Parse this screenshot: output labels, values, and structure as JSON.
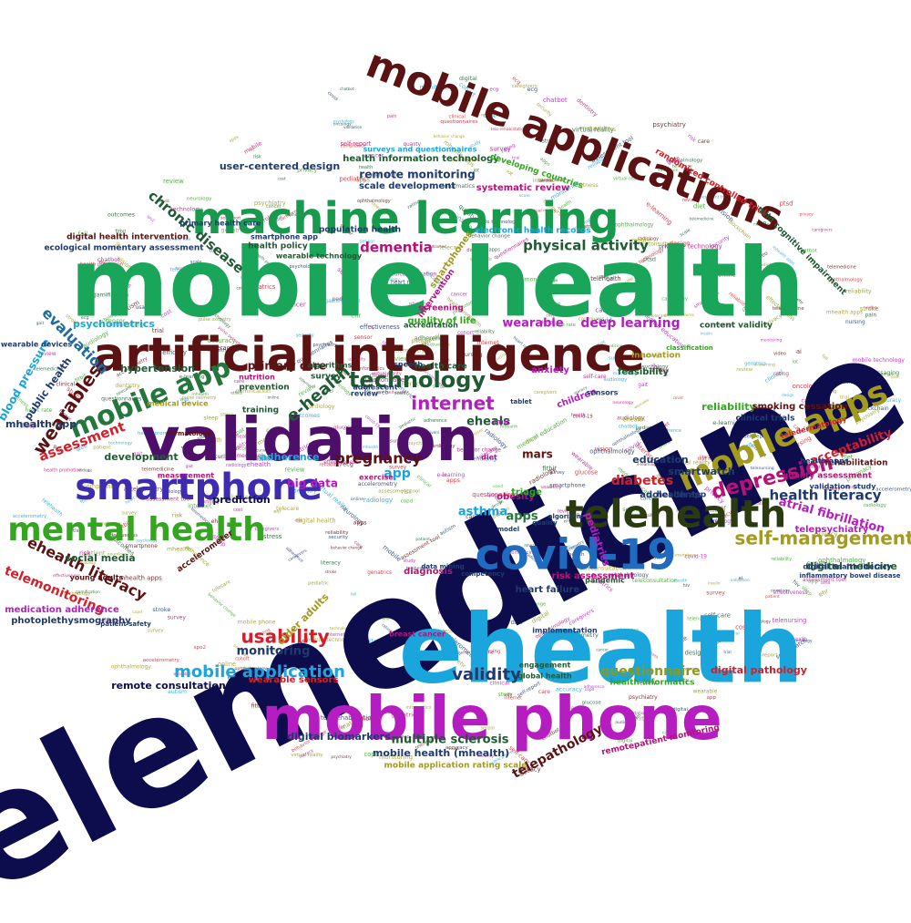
{
  "title": "Word cloud of keywords",
  "words": [
    {
      "text": "telemedicine",
      "color": "#0d0d4d"
    },
    {
      "text": "mobile health",
      "color": "#19a55a"
    },
    {
      "text": "ehealth",
      "color": "#1aa5dc"
    },
    {
      "text": "mobile phone",
      "color": "#b51dc0"
    },
    {
      "text": "validation",
      "color": "#4d0f6a"
    },
    {
      "text": "artificial intelligence",
      "color": "#5b1212"
    },
    {
      "text": "machine learning",
      "color": "#179a4c"
    },
    {
      "text": "mobile applications",
      "color": "#5b1212"
    },
    {
      "text": "smartphone",
      "color": "#3d2bb0"
    },
    {
      "text": "covid-19",
      "color": "#1e6bbf"
    },
    {
      "text": "telehealth",
      "color": "#2b3b10"
    },
    {
      "text": "mobile apps",
      "color": "#a39b1d"
    },
    {
      "text": "mental health",
      "color": "#33a51f"
    },
    {
      "text": "mobile app",
      "color": "#25763c"
    },
    {
      "text": "technology",
      "color": "#1f5a34"
    },
    {
      "text": "internet",
      "color": "#b51dc0"
    },
    {
      "text": "depression",
      "color": "#b8127a"
    },
    {
      "text": "self-management",
      "color": "#a39b1d"
    },
    {
      "text": "usability",
      "color": "#d41e2a"
    },
    {
      "text": "mobile application",
      "color": "#1aa5dc"
    },
    {
      "text": "validity",
      "color": "#1f3a6e"
    },
    {
      "text": "questionnaire",
      "color": "#8a9a1b"
    },
    {
      "text": "physical activity",
      "color": "#1f5a34"
    },
    {
      "text": "wearables",
      "color": "#5b1212"
    },
    {
      "text": "pregnancy",
      "color": "#5b1212"
    },
    {
      "text": "e-health",
      "color": "#1f5a34"
    },
    {
      "text": "ehealth literacy",
      "color": "#5b1212"
    },
    {
      "text": "telemonitoring",
      "color": "#d41e2a"
    },
    {
      "text": "health literacy",
      "color": "#1f3a6e"
    },
    {
      "text": "chronic disease",
      "color": "#1f5a34"
    },
    {
      "text": "dementia",
      "color": "#b8127a"
    },
    {
      "text": "deep learning",
      "color": "#b51dc0"
    },
    {
      "text": "wearable",
      "color": "#b51dc0"
    },
    {
      "text": "assessment",
      "color": "#d41e2a"
    },
    {
      "text": "evaluation",
      "color": "#1f6a9e"
    },
    {
      "text": "diabetes",
      "color": "#d41e2a"
    },
    {
      "text": "asthma",
      "color": "#1aa5dc"
    },
    {
      "text": "apps",
      "color": "#25763c"
    },
    {
      "text": "app",
      "color": "#1aa5dc"
    },
    {
      "text": "eheals",
      "color": "#1f5a34"
    },
    {
      "text": "mars",
      "color": "#5b1212"
    },
    {
      "text": "acceptability",
      "color": "#d41e2a"
    },
    {
      "text": "atrial fibrillation",
      "color": "#b51dc0"
    },
    {
      "text": "telepathology",
      "color": "#5b1212"
    },
    {
      "text": "multiple sclerosis",
      "color": "#1f5a34"
    },
    {
      "text": "digital biomarkers",
      "color": "#1f3a6e"
    },
    {
      "text": "mobile health (mhealth)",
      "color": "#1f3a6e"
    },
    {
      "text": "remote monitoring",
      "color": "#1f3a6e"
    },
    {
      "text": "health information technology",
      "color": "#1f5a34"
    },
    {
      "text": "user-centered design",
      "color": "#1f3a6e"
    },
    {
      "text": "monitoring",
      "color": "#1f3a6e"
    },
    {
      "text": "psychometrics",
      "color": "#1aa5dc"
    },
    {
      "text": "hypertension",
      "color": "#1f5a34"
    },
    {
      "text": "primary care",
      "color": "#5b1212"
    },
    {
      "text": "big data",
      "color": "#b51dc0"
    },
    {
      "text": "adherence",
      "color": "#1aa5dc"
    },
    {
      "text": "prediction",
      "color": "#0d0d4d"
    },
    {
      "text": "development",
      "color": "#1f5a34"
    },
    {
      "text": "social media",
      "color": "#1f5a34"
    },
    {
      "text": "blood pressure",
      "color": "#1aa5dc"
    },
    {
      "text": "public health",
      "color": "#1f3a6e"
    },
    {
      "text": "mhealth app",
      "color": "#1f3a6e"
    },
    {
      "text": "smartwatch",
      "color": "#1f3a6e"
    },
    {
      "text": "education",
      "color": "#1f3a6e"
    },
    {
      "text": "reliability",
      "color": "#33a51f"
    },
    {
      "text": "digital medicine",
      "color": "#1f5a34"
    },
    {
      "text": "digital pathology",
      "color": "#d41e2a"
    },
    {
      "text": "telepsychiatry",
      "color": "#b51dc0"
    },
    {
      "text": "heart failure",
      "color": "#1f3a6e"
    },
    {
      "text": "risk assessment",
      "color": "#b8127a"
    },
    {
      "text": "diagnosis",
      "color": "#b8127a"
    },
    {
      "text": "remote consultation",
      "color": "#0d0d4d"
    },
    {
      "text": "wearable sensors",
      "color": "#d41e2a"
    },
    {
      "text": "health informatics",
      "color": "#33a51f"
    },
    {
      "text": "mobile application rating scale",
      "color": "#a39b1d"
    },
    {
      "text": "photoplethysmography",
      "color": "#1f3a6e"
    },
    {
      "text": "medication adherence",
      "color": "#b51dc0"
    },
    {
      "text": "ecological momentary assessment",
      "color": "#1f3a6e"
    },
    {
      "text": "scale development",
      "color": "#1f3a6e"
    },
    {
      "text": "systematic review",
      "color": "#b8127a"
    },
    {
      "text": "feasibility",
      "color": "#1f5a34"
    },
    {
      "text": "obesity",
      "color": "#b8127a"
    },
    {
      "text": "quality of life",
      "color": "#33a51f"
    },
    {
      "text": "smoking cessation",
      "color": "#5b1212"
    },
    {
      "text": "rehabilitation",
      "color": "#5b1212"
    },
    {
      "text": "quality assessment",
      "color": "#b8127a"
    },
    {
      "text": "content validity",
      "color": "#1f5a34"
    },
    {
      "text": "adolescents",
      "color": "#1f3a6e"
    },
    {
      "text": "innovation",
      "color": "#a39b1d"
    },
    {
      "text": "pediatrics",
      "color": "#b51dc0"
    },
    {
      "text": "anxiety",
      "color": "#b51dc0"
    },
    {
      "text": "children",
      "color": "#b51dc0"
    },
    {
      "text": "triage",
      "color": "#33a51f"
    },
    {
      "text": "smartphones",
      "color": "#a39b1d"
    },
    {
      "text": "intervention",
      "color": "#b8127a"
    },
    {
      "text": "population health",
      "color": "#1f3a6e"
    },
    {
      "text": "electronic health records",
      "color": "#1aa5dc"
    },
    {
      "text": "surveys and questionnaires",
      "color": "#1aa5dc"
    },
    {
      "text": "developing countries",
      "color": "#33a51f"
    },
    {
      "text": "randomized controlled trial",
      "color": "#d41e2a"
    },
    {
      "text": "mild cognitive impairment",
      "color": "#1f5a34"
    },
    {
      "text": "digital health intervention",
      "color": "#5b1212"
    },
    {
      "text": "health policy",
      "color": "#1f5a34"
    },
    {
      "text": "primary health care",
      "color": "#1f3a6e"
    },
    {
      "text": "smartphone app",
      "color": "#1f3a6e"
    },
    {
      "text": "wearable technology",
      "color": "#1f5a34"
    },
    {
      "text": "older adults",
      "color": "#a39b1d"
    },
    {
      "text": "survey",
      "color": "#1f5a34"
    },
    {
      "text": "prevention",
      "color": "#1f5a34"
    },
    {
      "text": "training",
      "color": "#1f5a34"
    },
    {
      "text": "nutrition",
      "color": "#b8127a"
    },
    {
      "text": "medical device",
      "color": "#a39b1d"
    },
    {
      "text": "health care",
      "color": "#1f5a34"
    },
    {
      "text": "speech",
      "color": "#1f3a6e"
    },
    {
      "text": "adolescent",
      "color": "#1f3a6e"
    },
    {
      "text": "review",
      "color": "#1f3a6e"
    },
    {
      "text": "screening",
      "color": "#b8127a"
    },
    {
      "text": "accreditation",
      "color": "#1f5a34"
    },
    {
      "text": "algorithms",
      "color": "#1f5a34"
    },
    {
      "text": "lmic",
      "color": "#b51dc0"
    },
    {
      "text": "exercise",
      "color": "#b8127a"
    },
    {
      "text": "clinical trials",
      "color": "#1f3a6e"
    },
    {
      "text": "telemedicine",
      "color": "#b8127a"
    },
    {
      "text": "telemedicine",
      "color": "#b8127a"
    },
    {
      "text": "health apps",
      "color": "#1f3a6e"
    },
    {
      "text": "health app",
      "color": "#1f3a6e"
    },
    {
      "text": "digital health literacy",
      "color": "#1f3a6e"
    },
    {
      "text": "young adults",
      "color": "#5b1212"
    },
    {
      "text": "accelerometer",
      "color": "#5b1212"
    },
    {
      "text": "pandemic",
      "color": "#1f5a34"
    },
    {
      "text": "global health",
      "color": "#1f5a34"
    },
    {
      "text": "engagement",
      "color": "#1f5a34"
    },
    {
      "text": "breast cancer",
      "color": "#b8127a"
    },
    {
      "text": "implementation",
      "color": "#1f3a6e"
    },
    {
      "text": "remotepatient monitoring",
      "color": "#b8127a"
    },
    {
      "text": "wearable devices",
      "color": "#1f3a6e"
    },
    {
      "text": "competency",
      "color": "#1f3a6e"
    },
    {
      "text": "classification",
      "color": "#33a51f"
    },
    {
      "text": "data mining",
      "color": "#1f3a6e"
    },
    {
      "text": "quality",
      "color": "#1f3a6e"
    },
    {
      "text": "model",
      "color": "#1f3a6e"
    },
    {
      "text": "algorithm",
      "color": "#1f3a6e"
    },
    {
      "text": "dermatology",
      "color": "#5b1212"
    },
    {
      "text": "diet",
      "color": "#b8127a"
    },
    {
      "text": "tablet",
      "color": "#1f3a6e"
    },
    {
      "text": "sensors",
      "color": "#1f3a6e"
    },
    {
      "text": "validation study",
      "color": "#1f3a6e"
    },
    {
      "text": "teledermatology",
      "color": "#d41e2a"
    },
    {
      "text": "inflammatory bowel disease",
      "color": "#1f3a6e"
    },
    {
      "text": "patient safety",
      "color": "#1f3a6e"
    },
    {
      "text": "measurement",
      "color": "#b8127a"
    }
  ],
  "small_words": [
    "telemedicine",
    "ehealth",
    "mhealth",
    "digital health",
    "validation",
    "mobile",
    "app",
    "health",
    "smartphone",
    "covid",
    "apps",
    "telehealth",
    "technology",
    "wearable",
    "sensor",
    "study",
    "care",
    "patient",
    "quality",
    "review",
    "survey",
    "monitoring",
    "design",
    "trial",
    "rating",
    "scale",
    "cancer",
    "stroke",
    "copd",
    "pain",
    "stress",
    "sleep",
    "fitness",
    "nursing",
    "pharmacy",
    "ecg",
    "ai",
    "iot",
    "usability",
    "literacy",
    "elderly",
    "autism",
    "ptsd",
    "covid-19",
    "risk",
    "diet",
    "gait",
    "fall",
    "hiv",
    "cohort",
    "blockchain",
    "privacy",
    "security",
    "ethics",
    "cost",
    "clinical",
    "digital",
    "online",
    "web",
    "internet",
    "chatbot",
    "video",
    "virtual reality",
    "gamification",
    "text messaging",
    "sms",
    "behavior change",
    "self-care",
    "caregivers",
    "informatics",
    "ehr",
    "mhealth apps",
    "mobile phone",
    "self-report",
    "assessment tool",
    "questionnaires",
    "tele-rehabilitation",
    "audiology",
    "vision",
    "dentistry",
    "ophthalmology",
    "cardiology",
    "oncology",
    "psychiatry",
    "psychology",
    "neurology",
    "radiology",
    "pediatric",
    "geriatrics",
    "telecare",
    "telenursing",
    "teleconsultation",
    "e-learning",
    "health promotion",
    "medical education",
    "mobile technology",
    "smart watch",
    "fitbit",
    "accelerometry",
    "heart rate",
    "spo2",
    "pulse oximetry",
    "glucose",
    "insulin",
    "adherence",
    "compliance",
    "outcomes",
    "effectiveness",
    "efficacy",
    "reliability",
    "accuracy"
  ]
}
